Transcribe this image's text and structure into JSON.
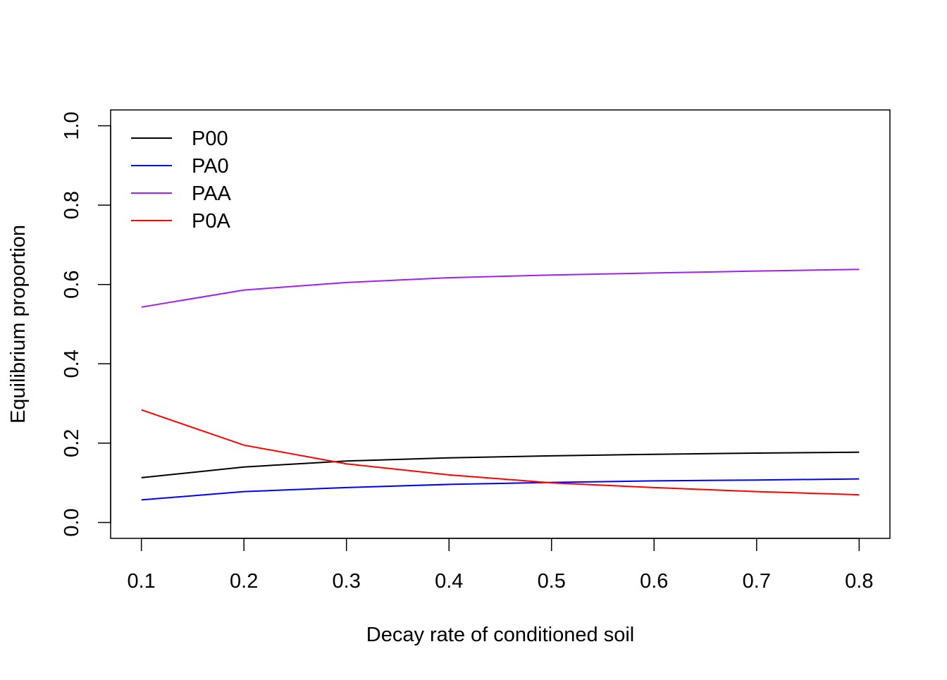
{
  "chart_data": {
    "type": "line",
    "title": "",
    "xlabel": "Decay rate of conditioned soil",
    "ylabel": "Equilibrium proportion",
    "x": [
      0.1,
      0.2,
      0.3,
      0.4,
      0.5,
      0.6,
      0.7,
      0.8
    ],
    "xlim": [
      0.07,
      0.83
    ],
    "ylim": [
      -0.04,
      1.04
    ],
    "x_ticks": [
      "0.1",
      "0.2",
      "0.3",
      "0.4",
      "0.5",
      "0.6",
      "0.7",
      "0.8"
    ],
    "y_ticks": [
      "0.0",
      "0.2",
      "0.4",
      "0.6",
      "0.8",
      "1.0"
    ],
    "grid": false,
    "legend_position": "top-left",
    "series": [
      {
        "name": "P00",
        "color": "#000000",
        "values": [
          0.113,
          0.14,
          0.155,
          0.163,
          0.168,
          0.172,
          0.175,
          0.177
        ]
      },
      {
        "name": "PA0",
        "color": "#0000ff",
        "values": [
          0.057,
          0.078,
          0.088,
          0.096,
          0.101,
          0.105,
          0.107,
          0.11
        ]
      },
      {
        "name": "PAA",
        "color": "#a020f0",
        "values": [
          0.543,
          0.586,
          0.605,
          0.617,
          0.624,
          0.629,
          0.634,
          0.638
        ]
      },
      {
        "name": "P0A",
        "color": "#ff0000",
        "values": [
          0.284,
          0.195,
          0.148,
          0.12,
          0.1,
          0.088,
          0.078,
          0.07
        ]
      }
    ]
  }
}
